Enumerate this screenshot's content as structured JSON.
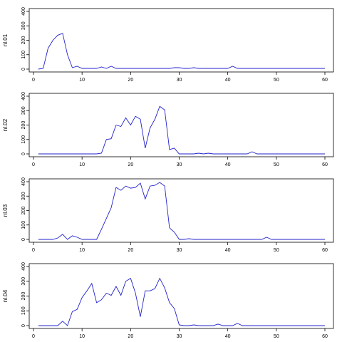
{
  "colors": {
    "line": "#2222cc",
    "axis": "#000000",
    "background": "#ffffff"
  },
  "chart_data": [
    {
      "type": "line",
      "ylabel": "nl.01",
      "xlim": [
        0,
        60
      ],
      "ylim": [
        0,
        400
      ],
      "x_ticks": [
        "0",
        "10",
        "20",
        "30",
        "40",
        "50",
        "60"
      ],
      "y_ticks": [
        "0",
        "100",
        "200",
        "300",
        "400"
      ],
      "grid": false,
      "x": [
        1,
        2,
        3,
        4,
        5,
        6,
        7,
        8,
        9,
        10,
        11,
        12,
        13,
        14,
        15,
        16,
        17,
        18,
        19,
        20,
        21,
        22,
        23,
        24,
        25,
        26,
        27,
        28,
        29,
        30,
        31,
        32,
        33,
        34,
        35,
        36,
        37,
        38,
        39,
        40,
        41,
        42,
        43,
        44,
        45,
        46,
        47,
        48,
        49,
        50,
        51,
        52,
        53,
        54,
        55,
        56,
        57,
        58,
        59,
        60
      ],
      "values": [
        0,
        5,
        145,
        200,
        235,
        248,
        100,
        10,
        20,
        5,
        5,
        5,
        5,
        15,
        5,
        20,
        5,
        5,
        5,
        5,
        5,
        5,
        5,
        5,
        5,
        5,
        5,
        5,
        10,
        10,
        5,
        5,
        10,
        5,
        5,
        5,
        5,
        5,
        5,
        5,
        20,
        5,
        5,
        5,
        5,
        5,
        5,
        5,
        5,
        5,
        5,
        5,
        5,
        5,
        5,
        5,
        5,
        5,
        5,
        5
      ]
    },
    {
      "type": "line",
      "ylabel": "nl.02",
      "xlim": [
        0,
        60
      ],
      "ylim": [
        0,
        400
      ],
      "x_ticks": [
        "0",
        "10",
        "20",
        "30",
        "40",
        "50",
        "60"
      ],
      "y_ticks": [
        "0",
        "100",
        "200",
        "300",
        "400"
      ],
      "grid": false,
      "x": [
        1,
        2,
        3,
        4,
        5,
        6,
        7,
        8,
        9,
        10,
        11,
        12,
        13,
        14,
        15,
        16,
        17,
        18,
        19,
        20,
        21,
        22,
        23,
        24,
        25,
        26,
        27,
        28,
        29,
        30,
        31,
        32,
        33,
        34,
        35,
        36,
        37,
        38,
        39,
        40,
        41,
        42,
        43,
        44,
        45,
        46,
        47,
        48,
        49,
        50,
        51,
        52,
        53,
        54,
        55,
        56,
        57,
        58,
        59,
        60
      ],
      "values": [
        0,
        0,
        0,
        0,
        0,
        0,
        0,
        0,
        0,
        0,
        0,
        0,
        0,
        5,
        100,
        105,
        200,
        190,
        250,
        200,
        260,
        240,
        40,
        180,
        240,
        330,
        305,
        30,
        40,
        0,
        0,
        0,
        0,
        5,
        0,
        5,
        0,
        0,
        0,
        0,
        0,
        0,
        0,
        0,
        15,
        0,
        0,
        0,
        0,
        0,
        0,
        0,
        0,
        0,
        0,
        0,
        0,
        0,
        0,
        0
      ]
    },
    {
      "type": "line",
      "ylabel": "nl.03",
      "xlim": [
        0,
        60
      ],
      "ylim": [
        0,
        400
      ],
      "x_ticks": [
        "0",
        "10",
        "20",
        "30",
        "40",
        "50",
        "60"
      ],
      "y_ticks": [
        "0",
        "100",
        "200",
        "300",
        "400"
      ],
      "grid": false,
      "x": [
        1,
        2,
        3,
        4,
        5,
        6,
        7,
        8,
        9,
        10,
        11,
        12,
        13,
        14,
        15,
        16,
        17,
        18,
        19,
        20,
        21,
        22,
        23,
        24,
        25,
        26,
        27,
        28,
        29,
        30,
        31,
        32,
        33,
        34,
        35,
        36,
        37,
        38,
        39,
        40,
        41,
        42,
        43,
        44,
        45,
        46,
        47,
        48,
        49,
        50,
        51,
        52,
        53,
        54,
        55,
        56,
        57,
        58,
        59,
        60
      ],
      "values": [
        0,
        0,
        0,
        0,
        10,
        35,
        0,
        25,
        15,
        0,
        0,
        0,
        0,
        70,
        145,
        220,
        360,
        340,
        370,
        355,
        360,
        390,
        280,
        370,
        375,
        395,
        370,
        80,
        50,
        0,
        0,
        5,
        0,
        0,
        0,
        0,
        0,
        0,
        0,
        0,
        0,
        0,
        0,
        0,
        0,
        0,
        0,
        15,
        0,
        0,
        0,
        0,
        0,
        0,
        0,
        0,
        0,
        0,
        0,
        0
      ]
    },
    {
      "type": "line",
      "ylabel": "nl.04",
      "xlim": [
        0,
        60
      ],
      "ylim": [
        0,
        400
      ],
      "x_ticks": [
        "0",
        "10",
        "20",
        "30",
        "40",
        "50",
        "60"
      ],
      "y_ticks": [
        "0",
        "100",
        "200",
        "300",
        "400"
      ],
      "grid": false,
      "x": [
        1,
        2,
        3,
        4,
        5,
        6,
        7,
        8,
        9,
        10,
        11,
        12,
        13,
        14,
        15,
        16,
        17,
        18,
        19,
        20,
        21,
        22,
        23,
        24,
        25,
        26,
        27,
        28,
        29,
        30,
        31,
        32,
        33,
        34,
        35,
        36,
        37,
        38,
        39,
        40,
        41,
        42,
        43,
        44,
        45,
        46,
        47,
        48,
        49,
        50,
        51,
        52,
        53,
        54,
        55,
        56,
        57,
        58,
        59,
        60
      ],
      "values": [
        0,
        0,
        0,
        0,
        0,
        30,
        0,
        95,
        110,
        190,
        235,
        285,
        155,
        175,
        220,
        205,
        265,
        205,
        300,
        320,
        220,
        60,
        235,
        235,
        250,
        320,
        255,
        155,
        115,
        5,
        0,
        0,
        5,
        0,
        0,
        0,
        0,
        10,
        0,
        0,
        0,
        15,
        0,
        0,
        0,
        0,
        0,
        0,
        0,
        0,
        0,
        0,
        0,
        0,
        0,
        0,
        0,
        0,
        0,
        0
      ]
    }
  ]
}
